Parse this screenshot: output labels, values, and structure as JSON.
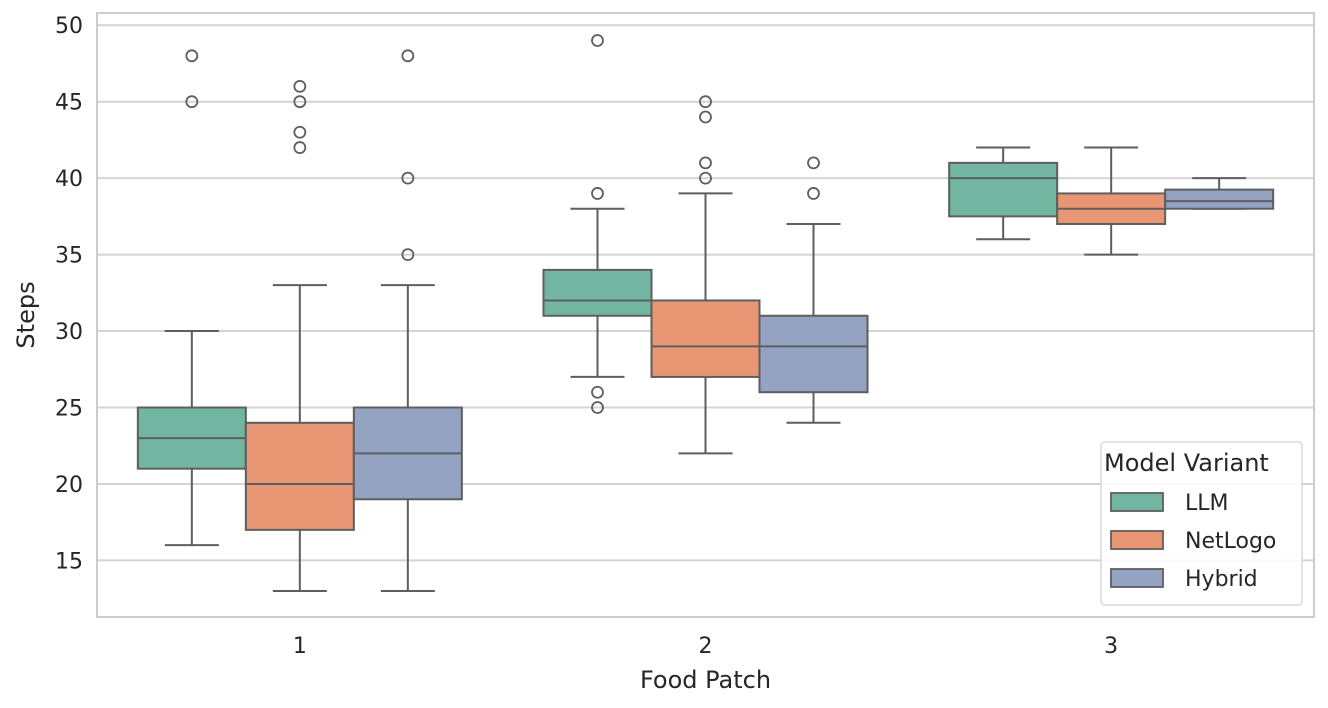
{
  "chart_data": {
    "type": "box",
    "title": "",
    "xlabel": "Food Patch",
    "ylabel": "Steps",
    "categories": [
      "1",
      "2",
      "3"
    ],
    "ylim": [
      11.3,
      50.8
    ],
    "yticks": [
      15,
      20,
      25,
      30,
      35,
      40,
      45,
      50
    ],
    "grid": true,
    "legend": {
      "title": "Model Variant",
      "position": "lower-right",
      "entries": [
        "LLM",
        "NetLogo",
        "Hybrid"
      ]
    },
    "series": [
      {
        "name": "LLM",
        "color": "#72b6a1",
        "boxes": [
          {
            "category": "1",
            "whisker_low": 16,
            "q1": 21,
            "median": 23,
            "q3": 25,
            "whisker_high": 30,
            "outliers": [
              45,
              48
            ]
          },
          {
            "category": "2",
            "whisker_low": 27,
            "q1": 31,
            "median": 32,
            "q3": 34,
            "whisker_high": 38,
            "outliers": [
              25,
              26,
              39,
              49
            ]
          },
          {
            "category": "3",
            "whisker_low": 36,
            "q1": 37.5,
            "median": 40,
            "q3": 41,
            "whisker_high": 42,
            "outliers": []
          }
        ]
      },
      {
        "name": "NetLogo",
        "color": "#e99675",
        "boxes": [
          {
            "category": "1",
            "whisker_low": 13,
            "q1": 17,
            "median": 20,
            "q3": 24,
            "whisker_high": 33,
            "outliers": [
              42,
              43,
              45,
              46
            ]
          },
          {
            "category": "2",
            "whisker_low": 22,
            "q1": 27,
            "median": 29,
            "q3": 32,
            "whisker_high": 39,
            "outliers": [
              40,
              41,
              44,
              45
            ]
          },
          {
            "category": "3",
            "whisker_low": 35,
            "q1": 37,
            "median": 38,
            "q3": 39,
            "whisker_high": 42,
            "outliers": []
          }
        ]
      },
      {
        "name": "Hybrid",
        "color": "#95a3c3",
        "boxes": [
          {
            "category": "1",
            "whisker_low": 13,
            "q1": 19,
            "median": 22,
            "q3": 25,
            "whisker_high": 33,
            "outliers": [
              35,
              40,
              48
            ]
          },
          {
            "category": "2",
            "whisker_low": 24,
            "q1": 26,
            "median": 29,
            "q3": 31,
            "whisker_high": 37,
            "outliers": [
              39,
              41
            ]
          },
          {
            "category": "3",
            "whisker_low": 38,
            "q1": 38,
            "median": 38.5,
            "q3": 39.25,
            "whisker_high": 40,
            "outliers": []
          }
        ]
      }
    ]
  }
}
